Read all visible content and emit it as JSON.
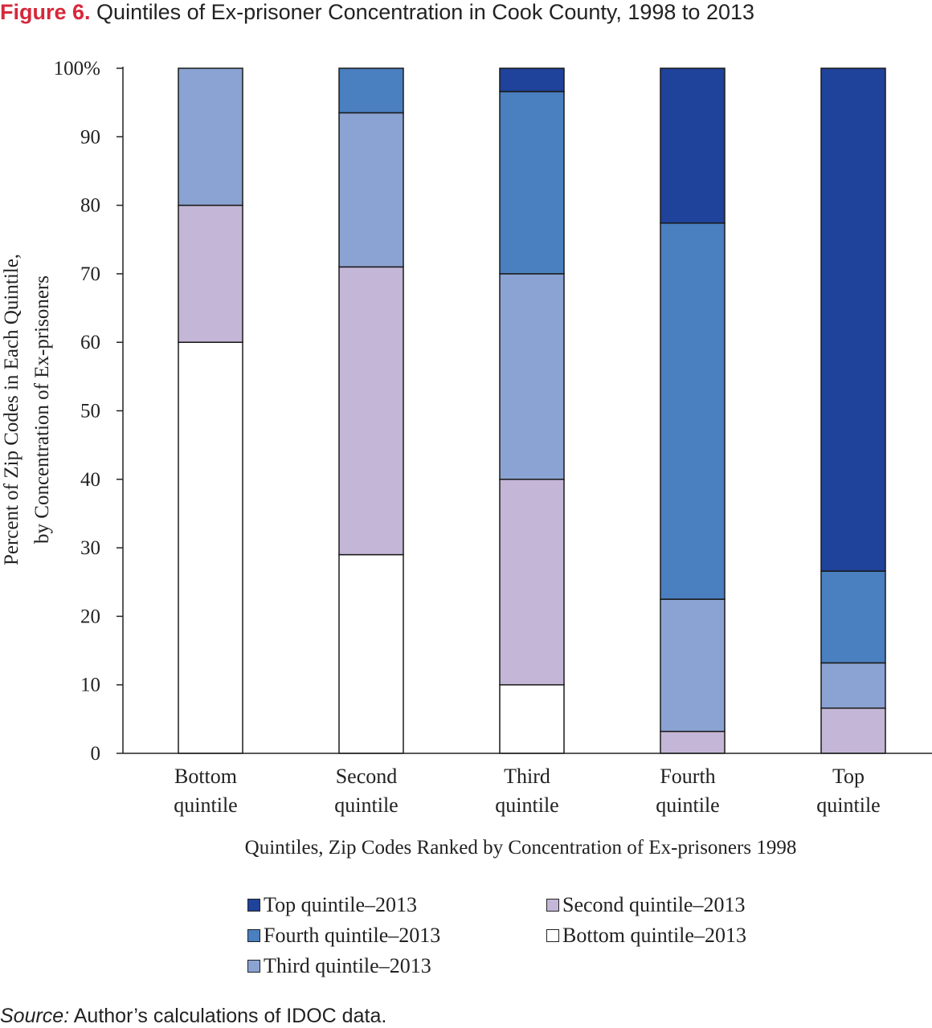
{
  "figure": {
    "label": "Figure 6.",
    "title": "Quintiles of Ex-prisoner Concentration in Cook County, 1998 to 2013",
    "source_prefix": "Source:",
    "source_text": " Author’s calculations of IDOC data."
  },
  "chart_data": {
    "type": "bar",
    "stacked": true,
    "xlabel": "Quintiles, Zip Codes Ranked by Concentration of Ex-prisoners 1998",
    "ylabel": [
      "Percent of Zip Codes in Each Quintile,",
      "by Concentration of Ex-prisoners"
    ],
    "ylim": [
      0,
      100
    ],
    "yticks": [
      0,
      10,
      20,
      30,
      40,
      50,
      60,
      70,
      80,
      90,
      100
    ],
    "yticklabels": [
      "0",
      "10",
      "20",
      "30",
      "40",
      "50",
      "60",
      "70",
      "80",
      "90",
      "100%"
    ],
    "categories": [
      [
        "Bottom",
        "quintile"
      ],
      [
        "Second",
        "quintile"
      ],
      [
        "Third",
        "quintile"
      ],
      [
        "Fourth",
        "quintile"
      ],
      [
        "Top",
        "quintile"
      ]
    ],
    "series": [
      {
        "name": "Bottom quintile–2013",
        "color": "#ffffff",
        "values": [
          60,
          29,
          10,
          0,
          0
        ]
      },
      {
        "name": "Second quintile–2013",
        "color": "#c4b6d6",
        "values": [
          20,
          42,
          30,
          3.2,
          6.6
        ]
      },
      {
        "name": "Third quintile–2013",
        "color": "#8aa3d2",
        "values": [
          20,
          22.5,
          30,
          19.3,
          6.6
        ]
      },
      {
        "name": "Fourth quintile–2013",
        "color": "#4a7fc0",
        "values": [
          0,
          6.5,
          26.6,
          54.9,
          13.4
        ]
      },
      {
        "name": "Top quintile–2013",
        "color": "#1f429a",
        "values": [
          0,
          0,
          3.4,
          22.6,
          73.4
        ]
      }
    ],
    "legend": {
      "position": "bottom",
      "order": [
        "Top quintile–2013",
        "Fourth quintile–2013",
        "Third quintile–2013",
        "Second quintile–2013",
        "Bottom quintile–2013"
      ]
    },
    "grid": false
  }
}
